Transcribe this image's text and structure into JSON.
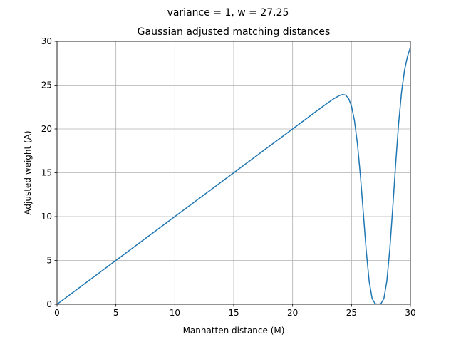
{
  "chart_data": {
    "type": "line",
    "suptitle": "variance = 1, w = 27.25",
    "title": "Gaussian adjusted matching distances",
    "xlabel": "Manhatten distance (M)",
    "ylabel": "Adjusted weight (A)",
    "xlim": [
      0,
      30
    ],
    "ylim": [
      0,
      30
    ],
    "xticks": [
      0,
      5,
      10,
      15,
      20,
      25,
      30
    ],
    "yticks": [
      0,
      5,
      10,
      15,
      20,
      25,
      30
    ],
    "grid": true,
    "series": [
      {
        "color": "#1f77b4",
        "x": [
          0,
          5,
          10,
          15,
          20,
          22,
          23,
          23.5,
          24,
          24.25,
          24.5,
          24.75,
          25,
          25.25,
          25.5,
          25.75,
          26,
          26.25,
          26.5,
          26.75,
          27,
          27.25,
          27.5,
          27.75,
          28,
          28.25,
          28.5,
          28.75,
          29,
          29.25,
          29.5,
          29.75,
          30
        ],
        "y": [
          0,
          5,
          10,
          15,
          20,
          22,
          22.99,
          23.45,
          23.83,
          23.92,
          23.86,
          23.49,
          22.61,
          20.96,
          18.36,
          14.78,
          10.47,
          6.11,
          2.62,
          0.65,
          0.07,
          0,
          0.07,
          0.65,
          2.65,
          6.26,
          10.98,
          16.03,
          20.64,
          24.23,
          26.71,
          28.26,
          29.33
        ]
      }
    ]
  }
}
